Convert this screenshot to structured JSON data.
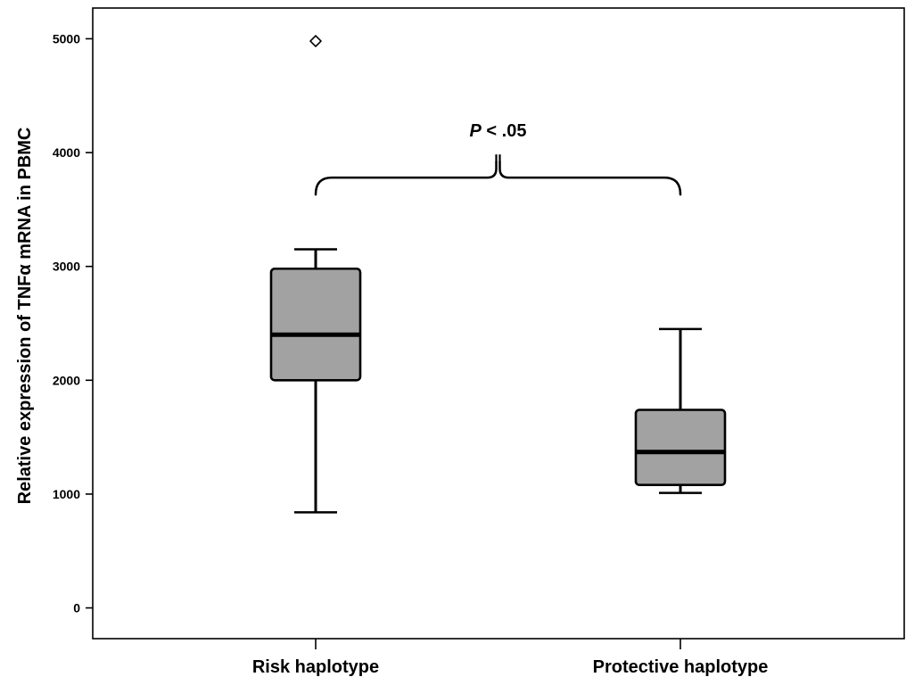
{
  "chart_data": {
    "type": "box",
    "title": "",
    "xlabel": "",
    "ylabel": "Relative expression of TNFα mRNA in PBMC",
    "ylim": [
      -270,
      5270
    ],
    "yticks": [
      0,
      1000,
      2000,
      3000,
      4000,
      5000
    ],
    "grid": false,
    "categories": [
      "Risk haplotype",
      "Protective haplotype"
    ],
    "boxes": [
      {
        "category": "Risk haplotype",
        "whisker_low": 840,
        "q1": 2000,
        "median": 2400,
        "q3": 2980,
        "whisker_high": 3150,
        "outliers": [
          4980
        ]
      },
      {
        "category": "Protective haplotype",
        "whisker_low": 1010,
        "q1": 1080,
        "median": 1370,
        "q3": 1740,
        "whisker_high": 2450,
        "outliers": []
      }
    ],
    "annotation": {
      "italic_part": "P",
      "rest": " < .05",
      "bracket_y": 3780
    },
    "colors": {
      "box_fill": "#a2a2a2",
      "stroke": "#000000"
    }
  }
}
